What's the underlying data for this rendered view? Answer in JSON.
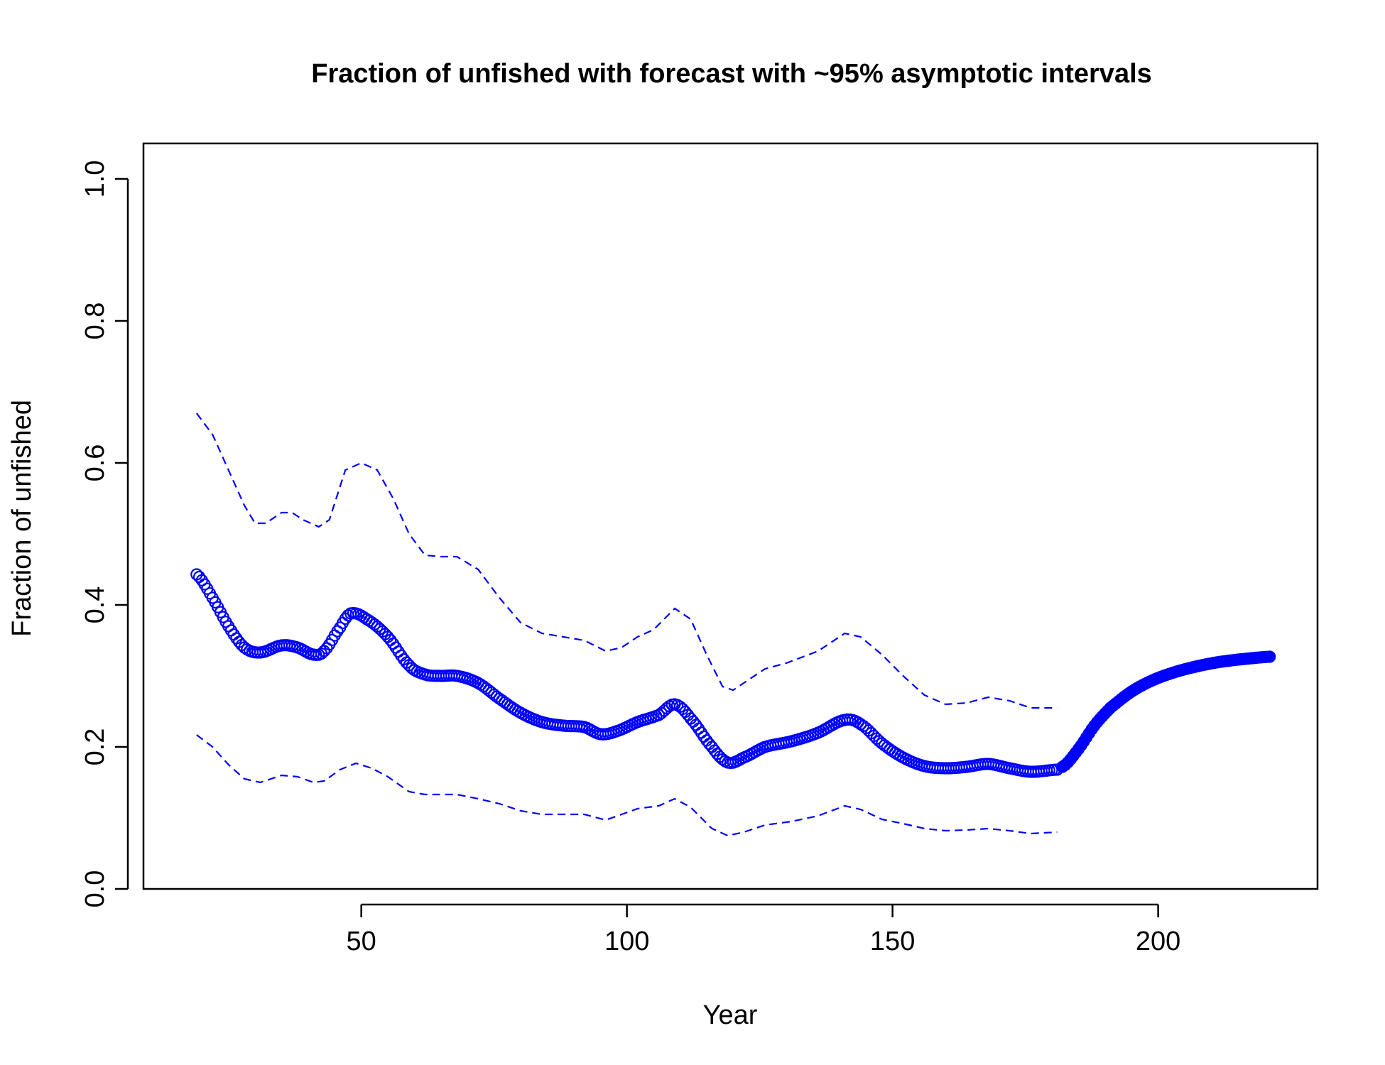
{
  "chart_data": {
    "type": "line",
    "title": "Fraction of unfished with forecast with ~95% asymptotic intervals",
    "xlabel": "Year",
    "ylabel": "Fraction of unfished",
    "xlim": [
      9,
      230
    ],
    "ylim": [
      0,
      1.05
    ],
    "x_ticks": [
      50,
      100,
      150,
      200
    ],
    "x_tick_labels": [
      "50",
      "100",
      "150",
      "200"
    ],
    "y_ticks": [
      0.0,
      0.2,
      0.4,
      0.6,
      0.8,
      1.0
    ],
    "y_tick_labels": [
      "0.0",
      "0.2",
      "0.4",
      "0.6",
      "0.8",
      "1.0"
    ],
    "grid": false,
    "legend": "none",
    "colors": {
      "series": "#0000FF",
      "axis": "#000000"
    },
    "series": [
      {
        "role": "estimate",
        "style": "open-circles",
        "x_start": 19,
        "x_end": 181,
        "knots_x": [
          19,
          22,
          25,
          28,
          31,
          35,
          38,
          41,
          43,
          46,
          48,
          51,
          55,
          59,
          62,
          65,
          68,
          72,
          76,
          80,
          84,
          88,
          92,
          95,
          98,
          102,
          106,
          109,
          112,
          116,
          119,
          122,
          126,
          131,
          136,
          141,
          144,
          148,
          152,
          156,
          160,
          164,
          168,
          172,
          176,
          181
        ],
        "knots_y": [
          0.443,
          0.41,
          0.37,
          0.34,
          0.333,
          0.343,
          0.34,
          0.33,
          0.335,
          0.368,
          0.388,
          0.38,
          0.355,
          0.315,
          0.302,
          0.3,
          0.3,
          0.29,
          0.268,
          0.248,
          0.235,
          0.23,
          0.228,
          0.218,
          0.222,
          0.235,
          0.245,
          0.26,
          0.24,
          0.2,
          0.178,
          0.185,
          0.2,
          0.208,
          0.22,
          0.238,
          0.232,
          0.205,
          0.185,
          0.173,
          0.17,
          0.172,
          0.176,
          0.17,
          0.165,
          0.168
        ]
      },
      {
        "role": "forecast",
        "style": "filled-circles",
        "x_start": 182,
        "x_end": 221,
        "knots_x": [
          182,
          185,
          188,
          191,
          195,
          199,
          203,
          207,
          211,
          215,
          221
        ],
        "knots_y": [
          0.172,
          0.197,
          0.23,
          0.255,
          0.278,
          0.294,
          0.305,
          0.313,
          0.319,
          0.323,
          0.327
        ]
      },
      {
        "role": "upper-95",
        "style": "dashed",
        "x": [
          19,
          22,
          25,
          28,
          30,
          32,
          35,
          37,
          39,
          42,
          44,
          47,
          50,
          53,
          56,
          59,
          62,
          65,
          68,
          72,
          76,
          80,
          84,
          88,
          92,
          96,
          99,
          102,
          105,
          109,
          112,
          115,
          118,
          120,
          122,
          126,
          130,
          136,
          141,
          144,
          148,
          152,
          156,
          160,
          164,
          168,
          172,
          176,
          181
        ],
        "y": [
          0.67,
          0.64,
          0.59,
          0.54,
          0.515,
          0.515,
          0.53,
          0.53,
          0.52,
          0.51,
          0.52,
          0.59,
          0.6,
          0.59,
          0.55,
          0.5,
          0.47,
          0.468,
          0.468,
          0.45,
          0.41,
          0.375,
          0.36,
          0.355,
          0.35,
          0.335,
          0.34,
          0.355,
          0.365,
          0.395,
          0.38,
          0.33,
          0.285,
          0.28,
          0.29,
          0.31,
          0.318,
          0.335,
          0.36,
          0.355,
          0.33,
          0.3,
          0.273,
          0.26,
          0.262,
          0.27,
          0.265,
          0.255,
          0.255
        ]
      },
      {
        "role": "lower-95",
        "style": "dashed",
        "x": [
          19,
          22,
          25,
          28,
          31,
          35,
          38,
          41,
          43,
          46,
          49,
          52,
          55,
          59,
          62,
          65,
          68,
          72,
          76,
          80,
          84,
          88,
          92,
          96,
          99,
          102,
          106,
          109,
          112,
          116,
          119,
          122,
          126,
          131,
          136,
          141,
          144,
          148,
          152,
          156,
          160,
          164,
          168,
          172,
          176,
          181
        ],
        "y": [
          0.217,
          0.2,
          0.175,
          0.155,
          0.15,
          0.16,
          0.158,
          0.15,
          0.152,
          0.168,
          0.177,
          0.17,
          0.158,
          0.137,
          0.133,
          0.133,
          0.133,
          0.127,
          0.12,
          0.11,
          0.105,
          0.105,
          0.105,
          0.097,
          0.105,
          0.113,
          0.117,
          0.127,
          0.115,
          0.085,
          0.075,
          0.08,
          0.09,
          0.095,
          0.103,
          0.117,
          0.112,
          0.098,
          0.092,
          0.085,
          0.082,
          0.083,
          0.085,
          0.082,
          0.078,
          0.08
        ]
      }
    ]
  }
}
